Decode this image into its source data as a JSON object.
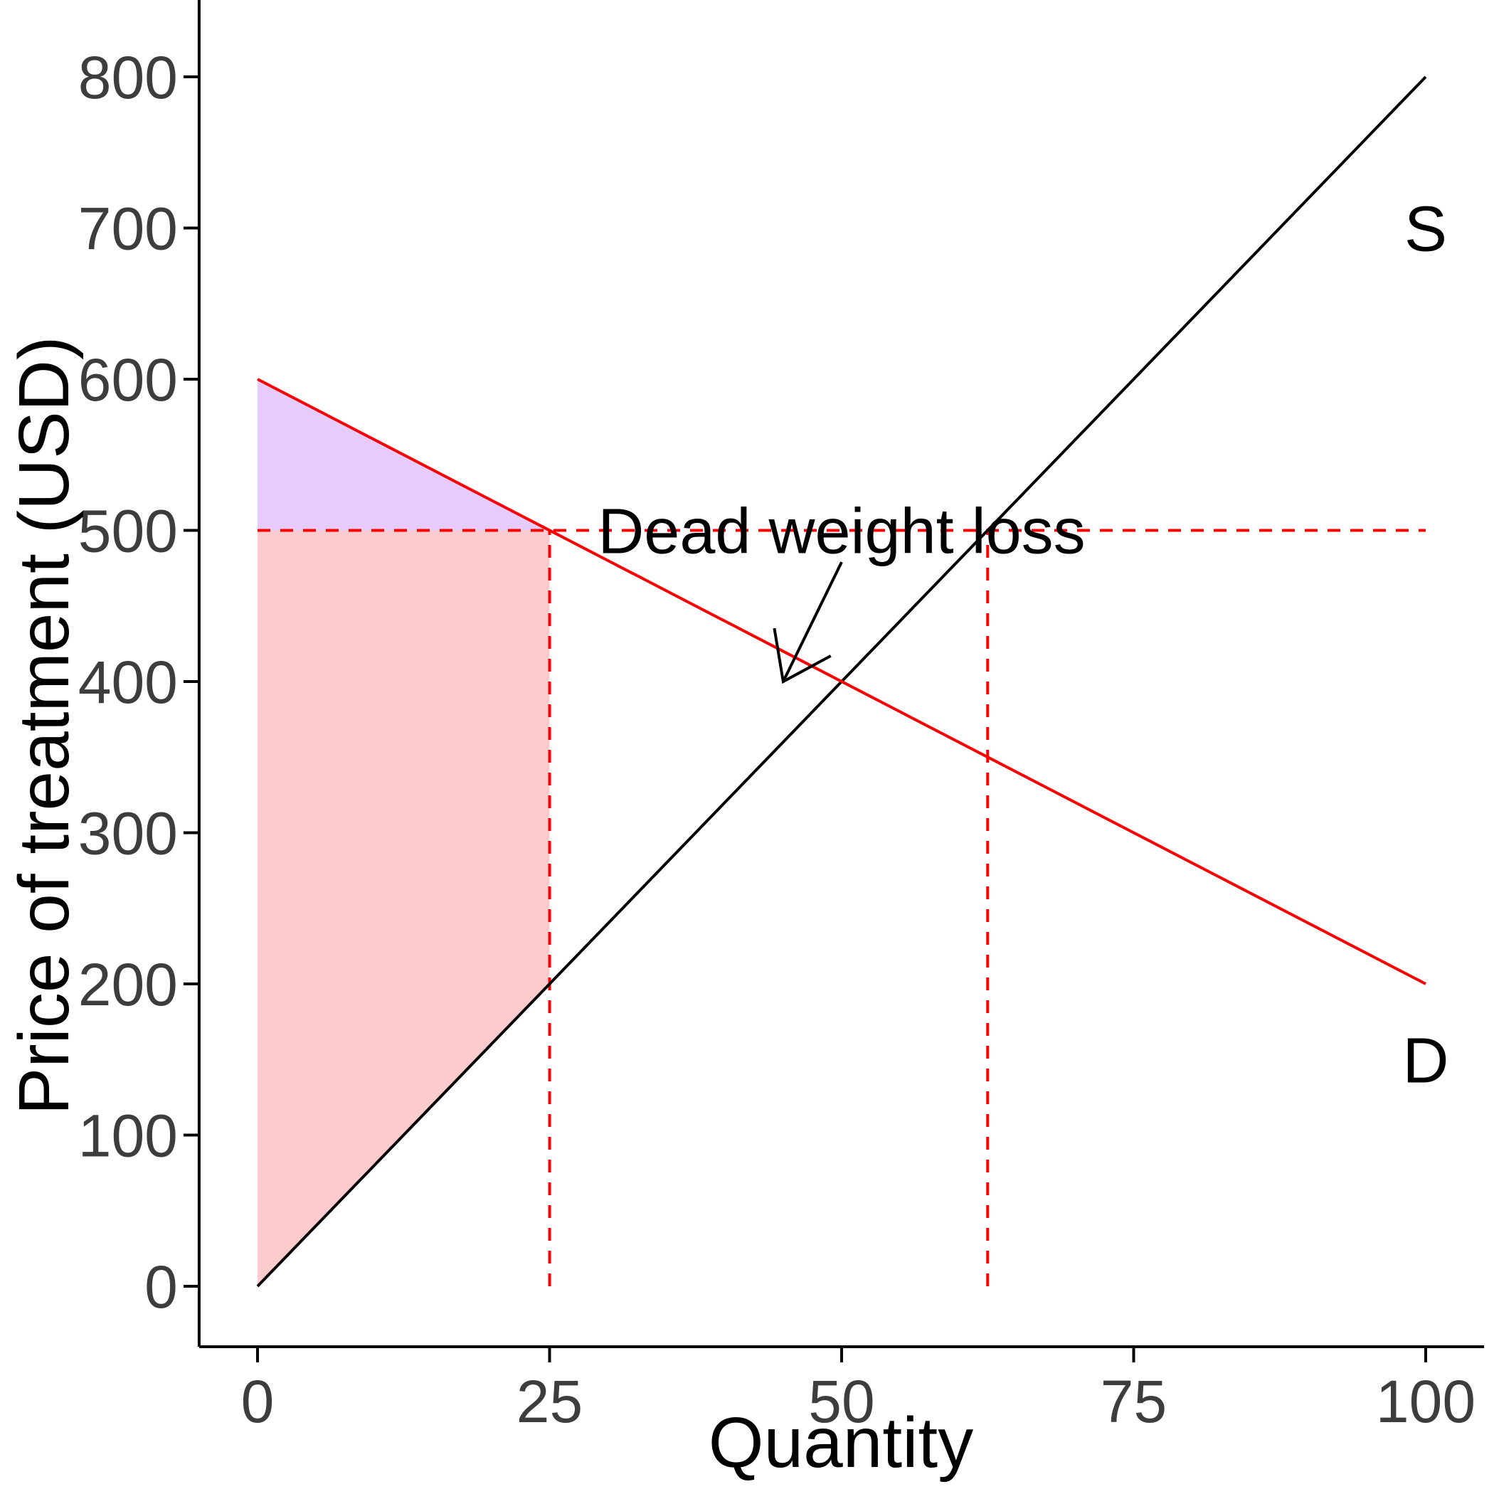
{
  "chart_data": {
    "type": "line",
    "title": "",
    "xlabel": "Quantity",
    "ylabel": "Price of treatment (USD)",
    "xlim": [
      -5,
      105
    ],
    "ylim": [
      -40,
      840
    ],
    "x_ticks": [
      0,
      25,
      50,
      75,
      100
    ],
    "y_ticks": [
      0,
      100,
      200,
      300,
      400,
      500,
      600,
      700,
      800
    ],
    "grid": false,
    "series": [
      {
        "name": "S",
        "color": "#000000",
        "points": [
          [
            0,
            0
          ],
          [
            100,
            800
          ]
        ]
      },
      {
        "name": "D",
        "color": "#ff0000",
        "points": [
          [
            0,
            600
          ],
          [
            100,
            200
          ]
        ]
      }
    ],
    "price_line": {
      "y": 500,
      "x_from": 0,
      "x_to": 100,
      "color": "#ff0000",
      "style": "dashed"
    },
    "quantity_lines": [
      {
        "x": 25,
        "y_from": 0,
        "y_to": 500,
        "color": "#ff0000",
        "style": "dashed"
      },
      {
        "x": 62.5,
        "y_from": 0,
        "y_to": 500,
        "color": "#ff0000",
        "style": "dashed"
      }
    ],
    "shaded_regions": [
      {
        "color": "#e6cbfb",
        "points": [
          [
            0,
            600
          ],
          [
            25,
            500
          ],
          [
            0,
            500
          ]
        ]
      },
      {
        "color": "#fccbcd",
        "points": [
          [
            0,
            500
          ],
          [
            25,
            500
          ],
          [
            25,
            200
          ],
          [
            0,
            0
          ]
        ]
      }
    ],
    "annotations": [
      {
        "text": "Dead weight loss",
        "x": 50,
        "y": 500,
        "arrow_from": [
          50,
          479
        ],
        "arrow_to": [
          45,
          400
        ]
      }
    ]
  }
}
